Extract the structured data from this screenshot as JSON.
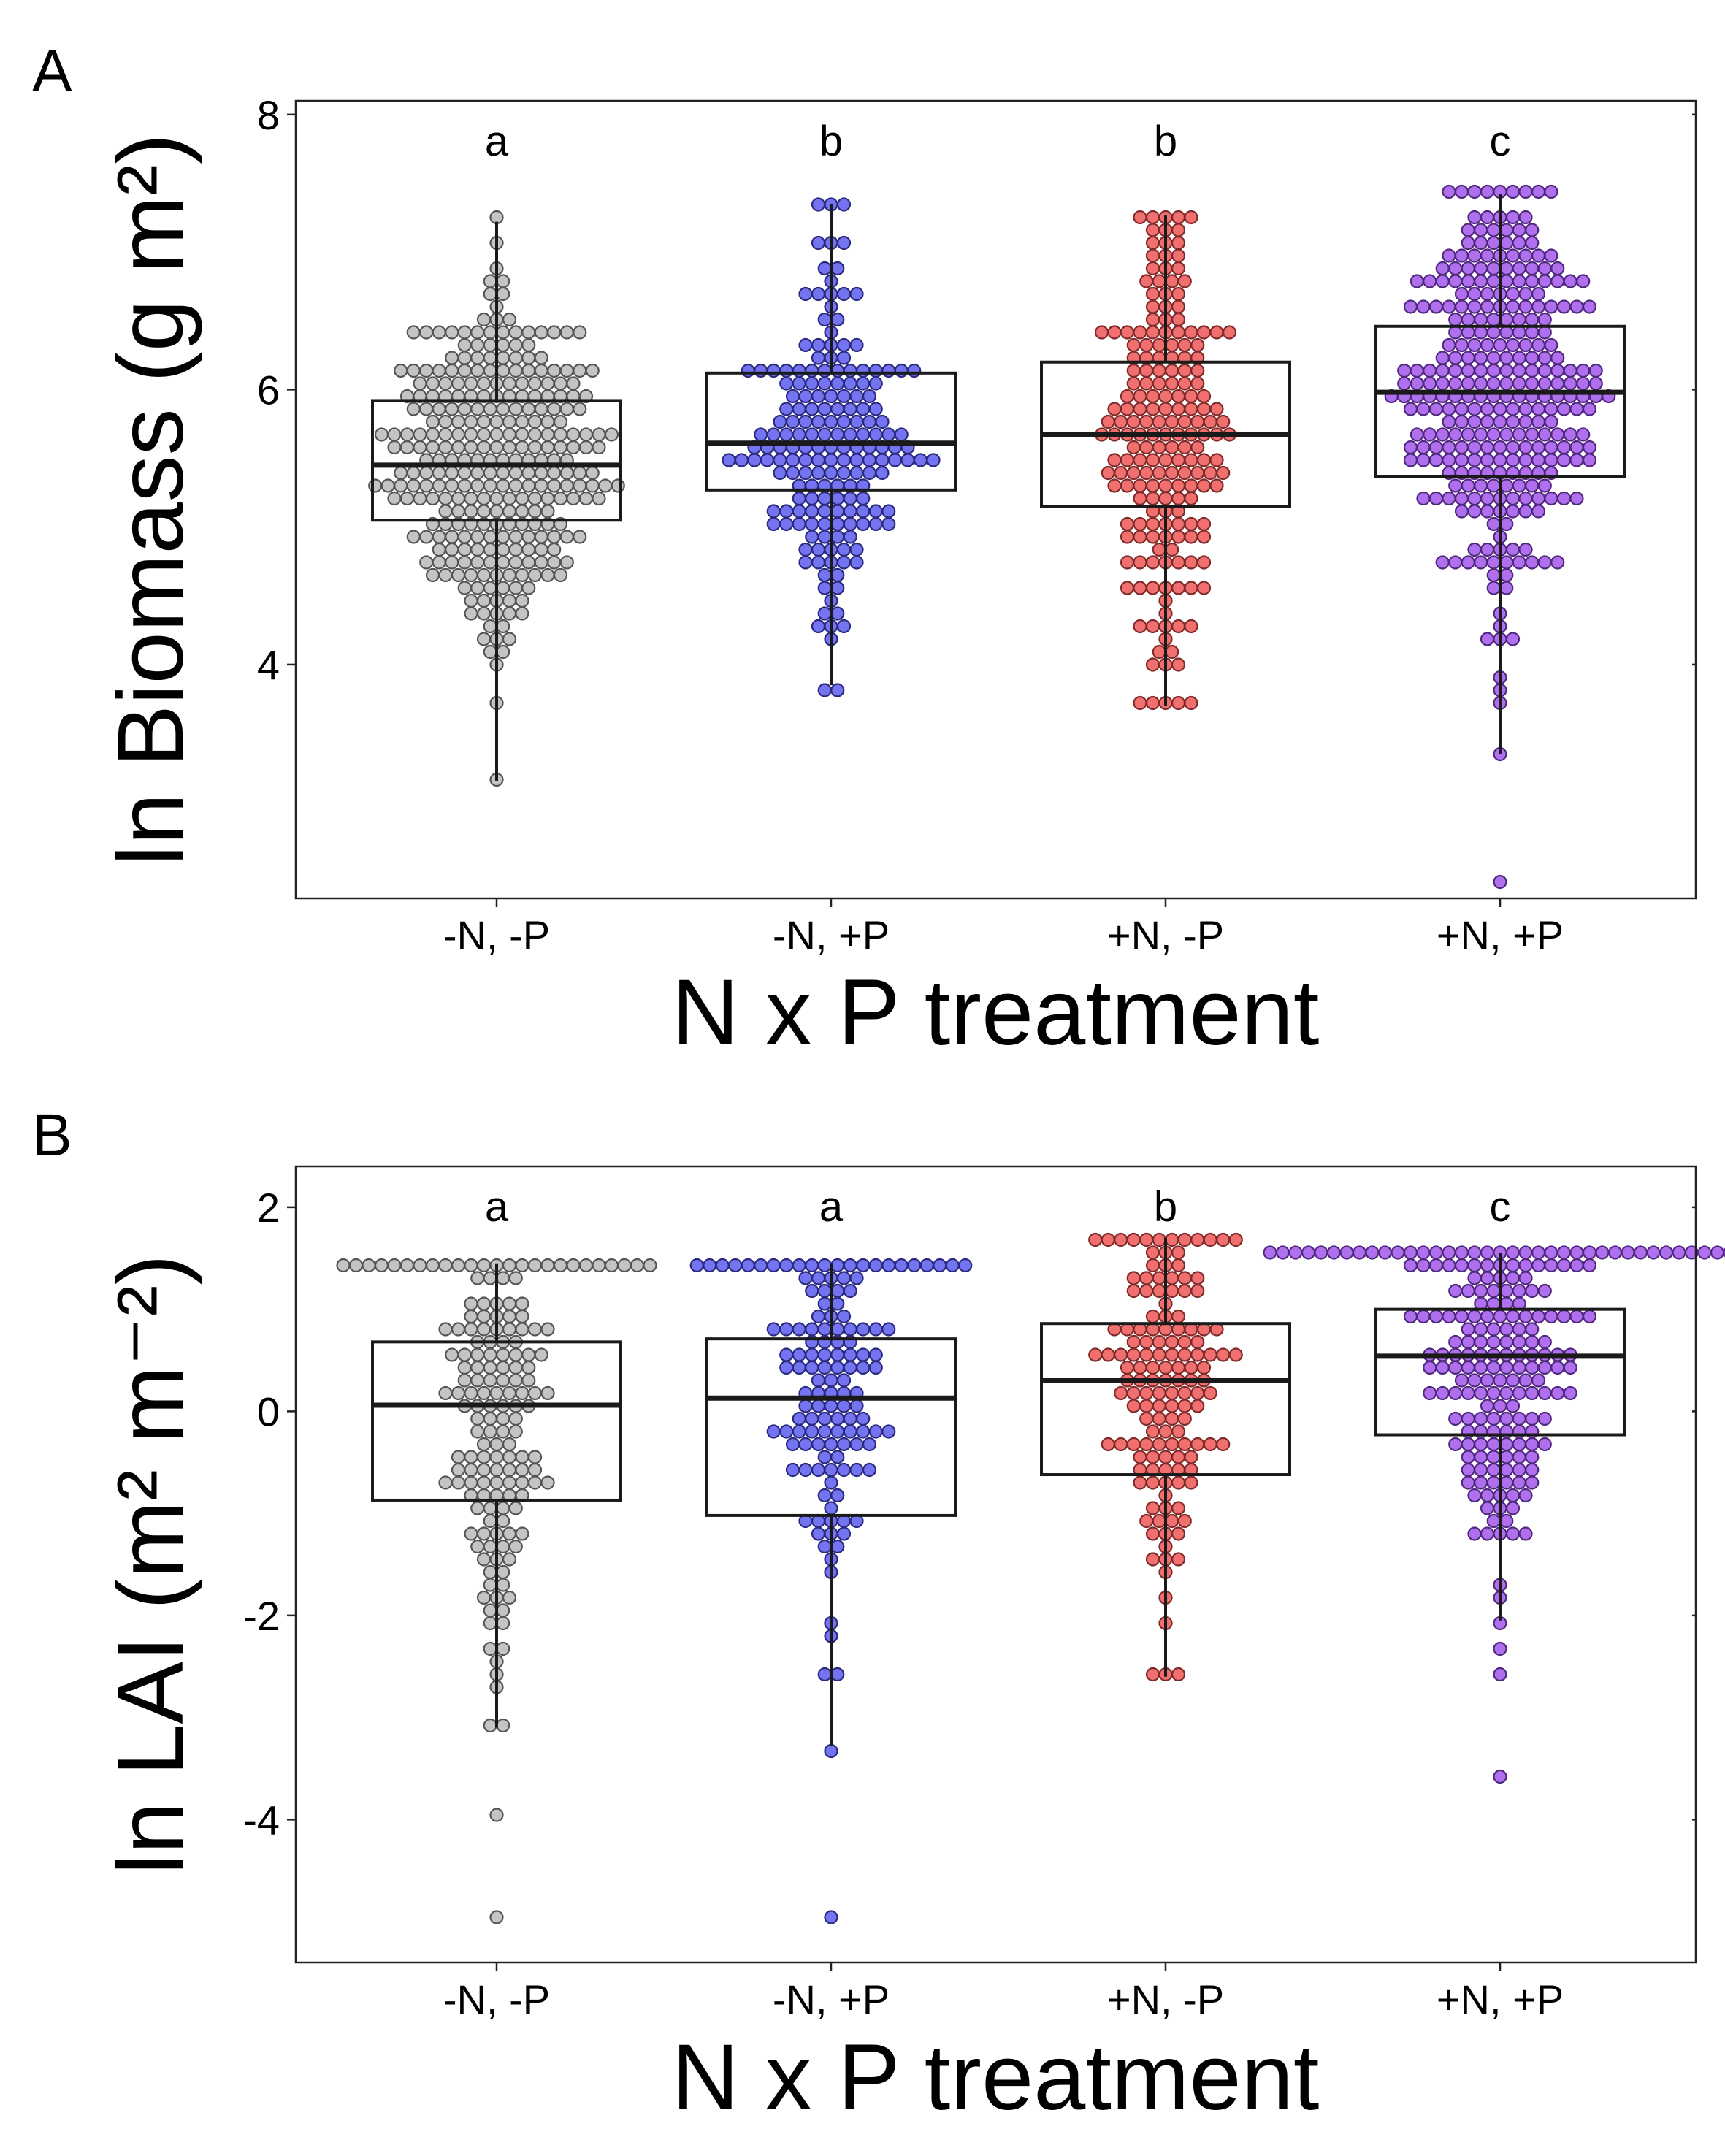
{
  "chart_data": [
    {
      "type": "boxplot",
      "panel_label": "A",
      "xlabel": "N x P treatment",
      "ylabel": "ln Biomass (g m²)",
      "categories": [
        "-N, -P",
        "-N, +P",
        "+N, -P",
        "+N, +P"
      ],
      "ylim": [
        2.3,
        8.1
      ],
      "yticks": [
        4,
        6,
        8
      ],
      "grid": false,
      "significance_letters": [
        "a",
        "b",
        "b",
        "c"
      ],
      "series": [
        {
          "category": "-N, -P",
          "color": "#c4c4c4",
          "edge": "#555555",
          "lower_whisker": 3.15,
          "q1": 5.05,
          "median": 5.45,
          "q3": 5.92,
          "upper_whisker": 7.22,
          "outliers": [],
          "n": 300
        },
        {
          "category": "-N, +P",
          "color": "#7474f0",
          "edge": "#2a2a80",
          "lower_whisker": 3.85,
          "q1": 5.27,
          "median": 5.61,
          "q3": 6.12,
          "upper_whisker": 7.35,
          "outliers": [],
          "n": 180
        },
        {
          "category": "+N, -P",
          "color": "#f07070",
          "edge": "#802a2a",
          "lower_whisker": 3.7,
          "q1": 5.15,
          "median": 5.67,
          "q3": 6.2,
          "upper_whisker": 7.27,
          "outliers": [],
          "n": 190
        },
        {
          "category": "+N, +P",
          "color": "#b070ee",
          "edge": "#502880",
          "lower_whisker": 3.35,
          "q1": 5.37,
          "median": 5.98,
          "q3": 6.46,
          "upper_whisker": 7.42,
          "outliers": [
            2.38
          ],
          "n": 300
        }
      ]
    },
    {
      "type": "boxplot",
      "panel_label": "B",
      "xlabel": "N x P treatment",
      "ylabel": "ln LAI (m² m⁻²)",
      "categories": [
        "-N, -P",
        "-N, +P",
        "+N, -P",
        "+N, +P"
      ],
      "ylim": [
        -5.4,
        2.4
      ],
      "yticks": [
        -4,
        -2,
        0,
        2
      ],
      "grid": false,
      "significance_letters": [
        "a",
        "a",
        "b",
        "c"
      ],
      "series": [
        {
          "category": "-N, -P",
          "color": "#c4c4c4",
          "edge": "#555555",
          "lower_whisker": -3.1,
          "q1": -0.87,
          "median": 0.06,
          "q3": 0.68,
          "upper_whisker": 1.45,
          "outliers": [
            -4.0,
            -4.95
          ],
          "n": 160
        },
        {
          "category": "-N, +P",
          "color": "#7474f0",
          "edge": "#2a2a80",
          "lower_whisker": -3.28,
          "q1": -1.02,
          "median": 0.13,
          "q3": 0.71,
          "upper_whisker": 1.45,
          "outliers": [
            -5.0
          ],
          "n": 130
        },
        {
          "category": "+N, -P",
          "color": "#f07070",
          "edge": "#802a2a",
          "lower_whisker": -2.6,
          "q1": -0.62,
          "median": 0.3,
          "q3": 0.86,
          "upper_whisker": 1.7,
          "outliers": [],
          "n": 140
        },
        {
          "category": "+N, +P",
          "color": "#b070ee",
          "edge": "#502880",
          "lower_whisker": -2.05,
          "q1": -0.23,
          "median": 0.54,
          "q3": 1.0,
          "upper_whisker": 1.55,
          "outliers": [
            -2.35,
            -2.63,
            -3.55
          ],
          "n": 200
        }
      ]
    }
  ]
}
